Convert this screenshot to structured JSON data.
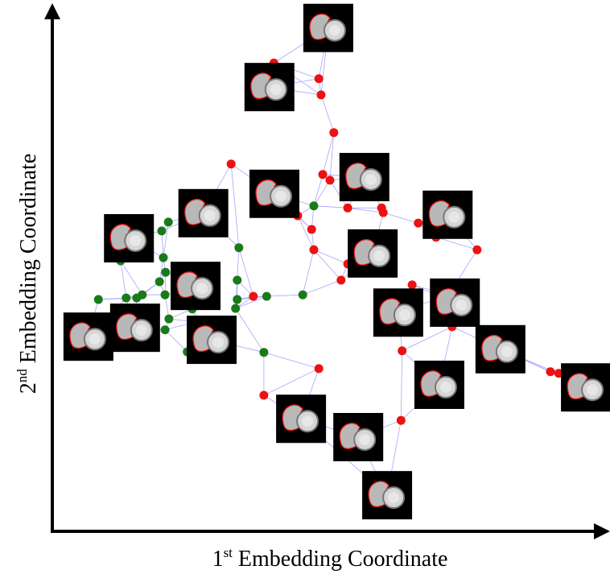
{
  "chart_data": {
    "type": "scatter",
    "xlabel": [
      "1",
      "st",
      " Embedding Coordinate"
    ],
    "ylabel": [
      "2",
      "nd",
      " Embedding Coordinate"
    ],
    "xlim": [
      0,
      100
    ],
    "ylim": [
      0,
      100
    ],
    "series": [
      {
        "color": "#ee1111",
        "x": [
          39.9,
          48.0,
          48.4,
          50.7,
          32.2,
          48.7,
          50.0,
          53.2,
          59.3,
          59.6,
          44.2,
          65.9,
          46.7,
          69.1,
          76.5,
          47.1,
          53.2,
          52.0,
          64.8,
          36.2,
          71.4,
          72.0,
          63.0,
          48.0,
          89.7,
          91.2,
          38.1,
          62.8
        ],
        "y": [
          89.5,
          86.5,
          83.4,
          76.2,
          70.2,
          68.2,
          67.1,
          61.8,
          61.8,
          60.9,
          60.3,
          58.9,
          57.7,
          56.2,
          53.8,
          53.8,
          51.1,
          48.0,
          47.1,
          44.9,
          45.2,
          39.1,
          34.5,
          31.1,
          30.5,
          30.2,
          26.0,
          21.2
        ]
      },
      {
        "color": "#1a7a1a",
        "x": [
          20.9,
          19.7,
          12.3,
          20.0,
          20.4,
          33.6,
          8.3,
          13.3,
          15.2,
          16.2,
          20.3,
          19.3,
          33.3,
          33.3,
          33.0,
          38.6,
          45.1,
          47.1,
          21.0,
          20.3,
          25.2,
          24.3,
          38.1,
          25.7
        ],
        "y": [
          59.1,
          57.4,
          51.7,
          52.3,
          49.5,
          54.2,
          44.3,
          44.6,
          44.6,
          45.2,
          45.2,
          47.7,
          48.0,
          44.3,
          42.6,
          44.9,
          45.2,
          62.2,
          40.6,
          38.5,
          42.5,
          34.3,
          34.2,
          40.0
        ]
      }
    ],
    "thumbnails": {
      "x": [
        49.7,
        39.1,
        56.2,
        40.0,
        27.2,
        13.8,
        71.2,
        57.7,
        25.8,
        6.5,
        14.9,
        28.7,
        62.3,
        72.5,
        80.7,
        69.7,
        96.1,
        44.8,
        55.1,
        60.3
      ],
      "y": [
        96.2,
        84.9,
        67.7,
        64.5,
        60.8,
        56.0,
        60.5,
        53.1,
        46.9,
        37.2,
        38.9,
        36.6,
        41.8,
        43.7,
        34.8,
        28.0,
        27.5,
        21.5,
        18.0,
        6.9
      ]
    }
  }
}
